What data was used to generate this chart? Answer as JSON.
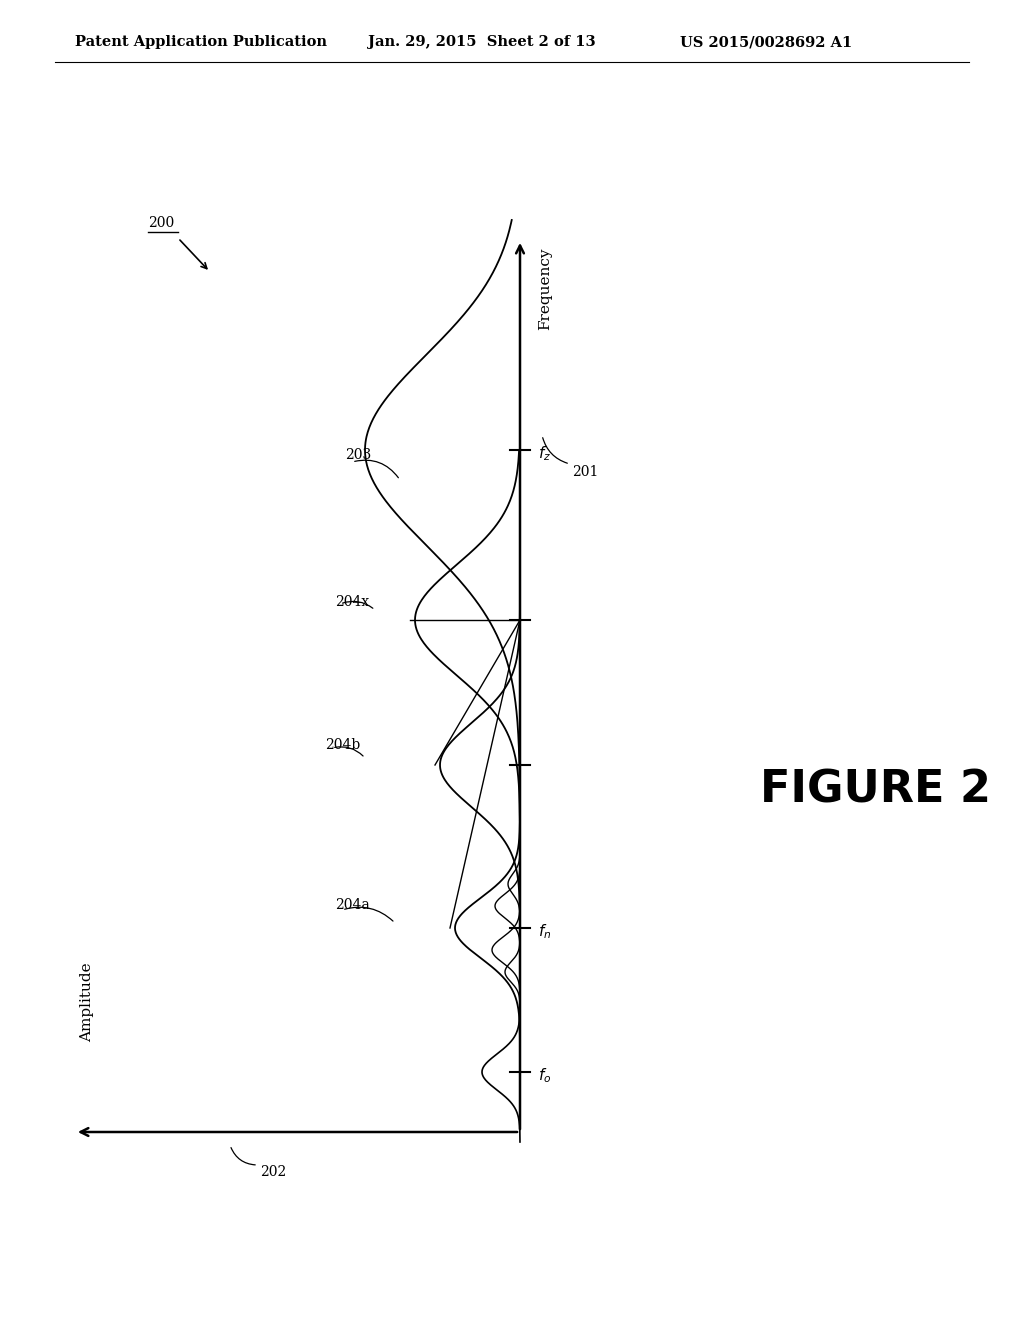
{
  "bg_color": "#ffffff",
  "header_left": "Patent Application Publication",
  "header_center": "Jan. 29, 2015  Sheet 2 of 13",
  "header_right": "US 2015/0028692 A1",
  "figure_label": "FIGURE 2",
  "ref_200": "200",
  "ref_201": "201",
  "ref_202": "202",
  "ref_203": "203",
  "ref_204a": "204a",
  "ref_204b": "204b",
  "ref_204x": "204x",
  "label_freq": "Frequency",
  "label_amp": "Amplitude",
  "line_color": "#000000",
  "text_color": "#000000",
  "font_size_header": 10.5,
  "font_size_refs": 10,
  "font_size_figure": 32,
  "font_size_axis_labels": 11
}
